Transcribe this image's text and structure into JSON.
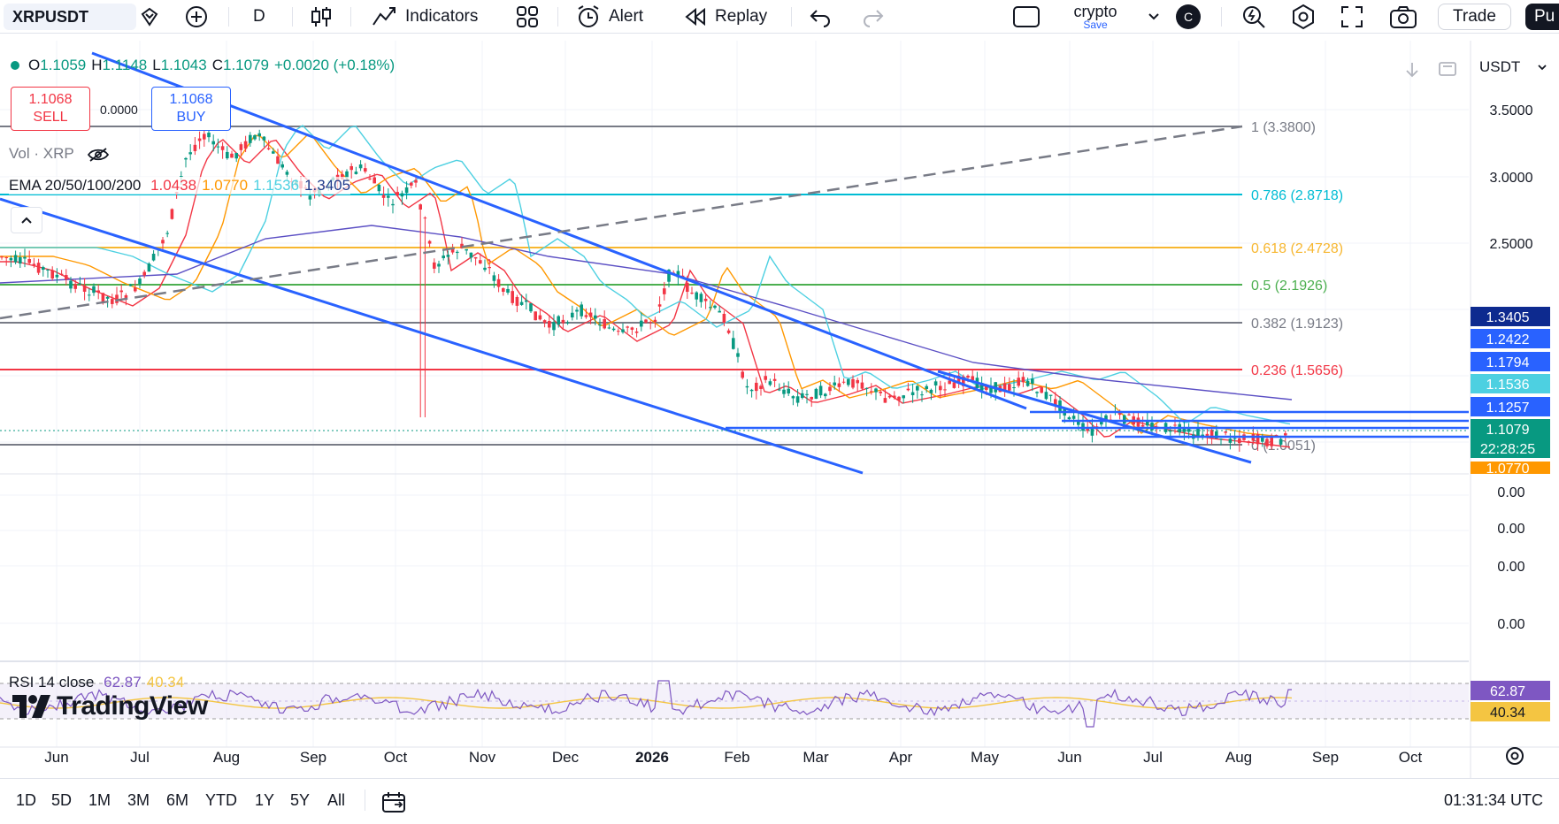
{
  "toolbar": {
    "symbol": "XRPUSDT",
    "interval": "D",
    "indicators_label": "Indicators",
    "alert_label": "Alert",
    "replay_label": "Replay",
    "layout_name": "crypto",
    "layout_save": "Save",
    "avatar_letter": "C",
    "trade_label": "Trade",
    "publish_label": "Pu"
  },
  "legend": {
    "ohlc": [
      {
        "k": "O",
        "v": "1.1059"
      },
      {
        "k": "H",
        "v": "1.1148"
      },
      {
        "k": "L",
        "v": "1.1043"
      },
      {
        "k": "C",
        "v": "1.1079"
      }
    ],
    "change": "+0.0020 (+0.18%)",
    "sell_price": "1.1068",
    "sell_label": "SELL",
    "buy_price": "1.1068",
    "buy_label": "BUY",
    "spread": "0.0000",
    "vol": "Vol · XRP",
    "ema_name": "EMA 20/50/100/200",
    "ema_values": [
      {
        "v": "1.0438",
        "color": "#f23645"
      },
      {
        "v": "1.0770",
        "color": "#ff9800"
      },
      {
        "v": "1.1536",
        "color": "#4dd0e1"
      },
      {
        "v": "1.3405",
        "color": "#1e3a8a"
      }
    ],
    "rsi_name": "RSI 14 close",
    "rsi_values": [
      {
        "v": "62.87",
        "color": "#7e57c2"
      },
      {
        "v": "40.34",
        "color": "#f4c542"
      }
    ]
  },
  "currency": "USDT",
  "logo_text": "TradingView",
  "chart_data": {
    "type": "candlestick",
    "symbol": "XRPUSDT",
    "interval": "D",
    "price_axis_ticks": [
      "3.5000",
      "3.0000",
      "2.5000",
      "0.00",
      "0.00",
      "0.00",
      "0.00"
    ],
    "time_axis_ticks": [
      "Jun",
      "Jul",
      "Aug",
      "Sep",
      "Oct",
      "Nov",
      "Dec",
      "2026",
      "Feb",
      "Mar",
      "Apr",
      "May",
      "Jun",
      "Jul",
      "Aug",
      "Sep",
      "Oct"
    ],
    "fib_levels": [
      {
        "label": "1 (3.3800)",
        "color": "#787b86"
      },
      {
        "label": "0.786 (2.8718)",
        "color": "#00bcd4"
      },
      {
        "label": "0.618 (2.4728)",
        "color": "#f7b731"
      },
      {
        "label": "0.5 (2.1926)",
        "color": "#4caf50"
      },
      {
        "label": "0.382 (1.9123)",
        "color": "#787b86"
      },
      {
        "label": "0.236 (1.5656)",
        "color": "#f23645"
      },
      {
        "label": "0 (1.0051)",
        "color": "#787b86"
      }
    ],
    "price_badges": [
      {
        "v": "1.3405",
        "color": "#0d2a8f"
      },
      {
        "v": "1.2422",
        "color": "#2962ff"
      },
      {
        "v": "1.1794",
        "color": "#2962ff"
      },
      {
        "v": "1.1536",
        "color": "#4dd0e1"
      },
      {
        "v": "1.1257",
        "color": "#2962ff"
      },
      {
        "v": "1.1079",
        "color": "#089981"
      },
      {
        "v": "22:28:25",
        "color": "#089981"
      },
      {
        "v": "1.0770",
        "color": "#ff9800"
      }
    ],
    "rsi_badges": [
      {
        "v": "62.87",
        "color": "#7e57c2"
      },
      {
        "v": "40.34",
        "color": "#f4c542"
      }
    ]
  },
  "bottom": {
    "ranges": [
      "1D",
      "5D",
      "1M",
      "3M",
      "6M",
      "YTD",
      "1Y",
      "5Y",
      "All"
    ],
    "clock": "01:31:34 UTC"
  }
}
